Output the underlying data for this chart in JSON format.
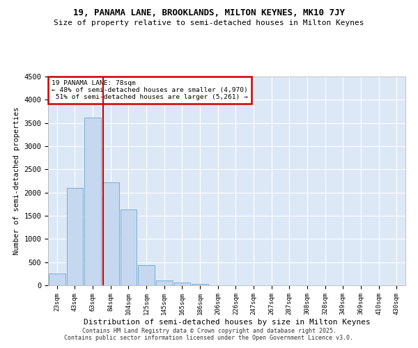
{
  "title_line1": "19, PANAMA LANE, BROOKLANDS, MILTON KEYNES, MK10 7JY",
  "title_line2": "Size of property relative to semi-detached houses in Milton Keynes",
  "xlabel": "Distribution of semi-detached houses by size in Milton Keynes",
  "ylabel": "Number of semi-detached properties",
  "bar_color": "#c5d8f0",
  "bar_edge_color": "#7aadd4",
  "background_color": "#dde8f7",
  "fig_color": "#ffffff",
  "grid_color": "#ffffff",
  "categories": [
    "23sqm",
    "43sqm",
    "63sqm",
    "84sqm",
    "104sqm",
    "125sqm",
    "145sqm",
    "165sqm",
    "186sqm",
    "206sqm",
    "226sqm",
    "247sqm",
    "267sqm",
    "287sqm",
    "308sqm",
    "328sqm",
    "349sqm",
    "369sqm",
    "410sqm",
    "430sqm"
  ],
  "values": [
    250,
    2100,
    3620,
    2220,
    1640,
    440,
    100,
    55,
    30,
    0,
    0,
    0,
    0,
    0,
    0,
    0,
    0,
    0,
    0,
    0
  ],
  "property_label": "19 PANAMA LANE: 78sqm",
  "pct_smaller": 48,
  "count_smaller": 4970,
  "pct_larger": 51,
  "count_larger": 5261,
  "vline_position": 2.575,
  "ylim": [
    0,
    4500
  ],
  "yticks": [
    0,
    500,
    1000,
    1500,
    2000,
    2500,
    3000,
    3500,
    4000,
    4500
  ],
  "annotation_box_color": "#ffffff",
  "annotation_box_edge": "#cc0000",
  "vline_color": "#cc0000",
  "footer_line1": "Contains HM Land Registry data © Crown copyright and database right 2025.",
  "footer_line2": "Contains public sector information licensed under the Open Government Licence v3.0."
}
